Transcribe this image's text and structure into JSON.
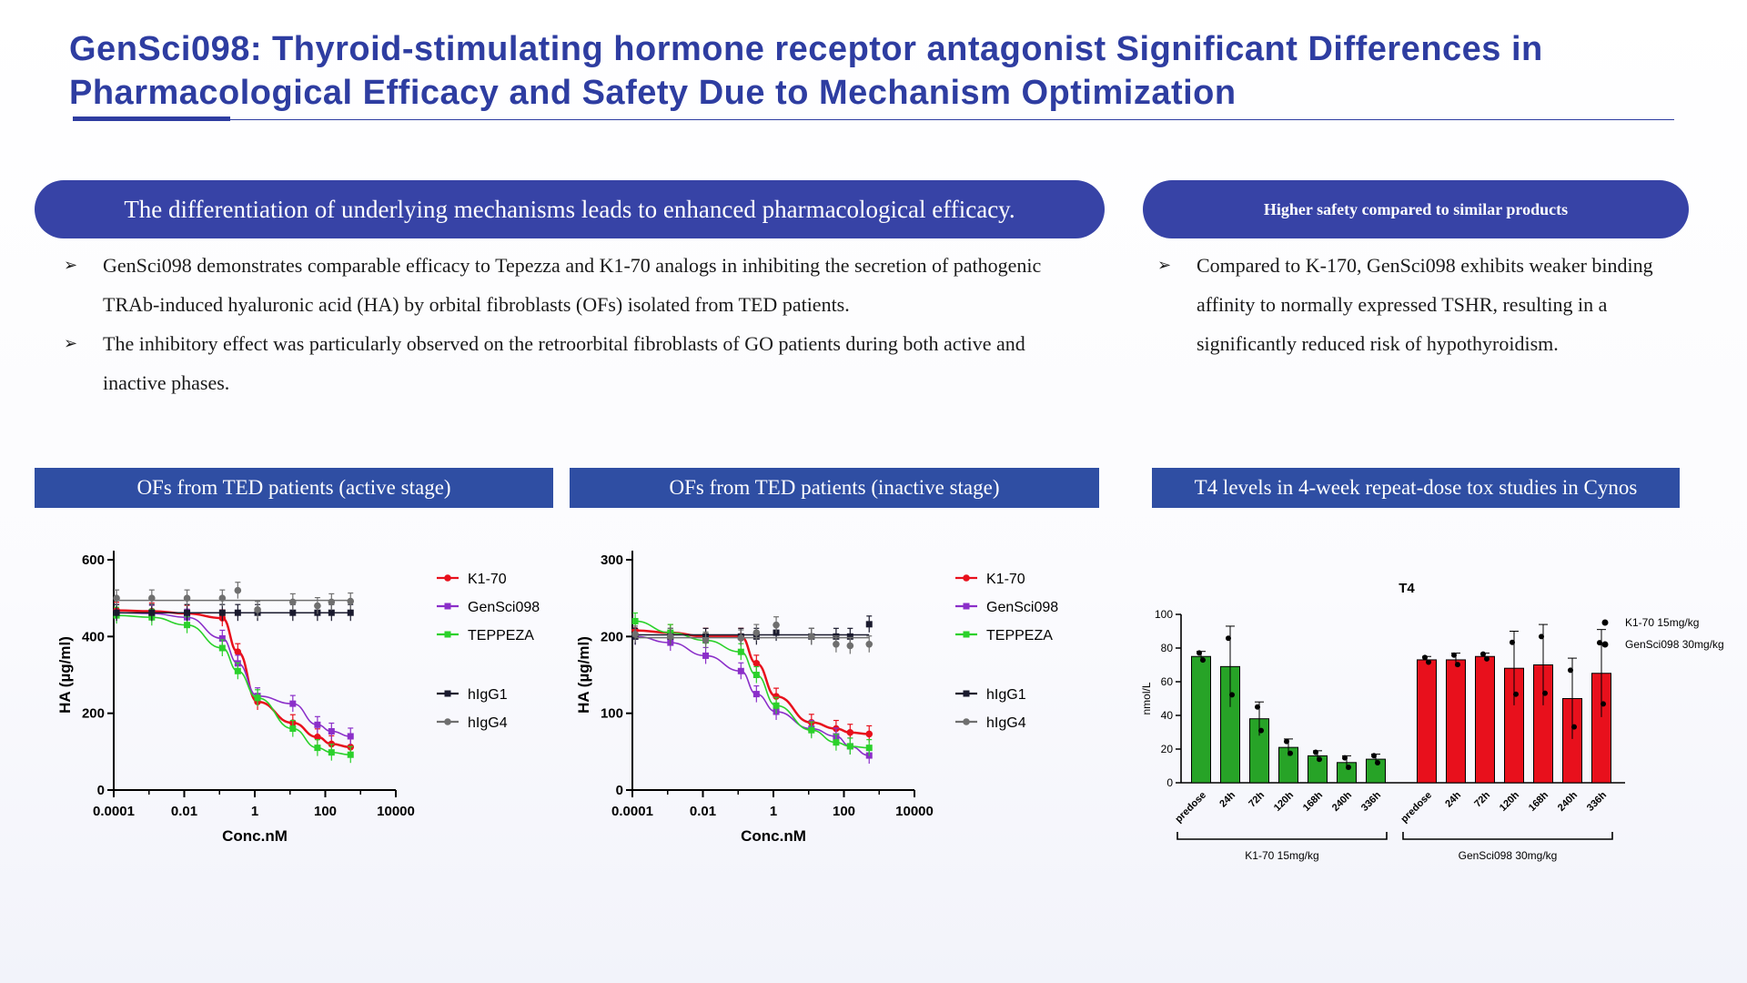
{
  "title": "GenSci098: Thyroid-stimulating hormone receptor antagonist  Significant Differences in Pharmacological Efficacy and Safety Due to Mechanism Optimization",
  "left_panel": {
    "header": "The differentiation of underlying mechanisms  leads to enhanced pharmacological  efficacy.",
    "bullets": [
      "GenSci098 demonstrates comparable efficacy to Tepezza and K1-70 analogs in inhibiting  the secretion of pathogenic TRAb-induced hyaluronic acid (HA) by orbital fibroblasts (OFs) isolated from TED patients.",
      "The inhibitory effect was particularly observed on the retroorbital fibroblasts of GO patients during both active and inactive phases."
    ]
  },
  "right_panel": {
    "header": "Higher safety compared  to similar  products",
    "bullets": [
      "Compared to K-170, GenSci098 exhibits weaker binding  affinity to normally expressed TSHR, resulting in a significantly  reduced risk of hypothyroidism."
    ]
  },
  "bullet_symbol": "➢",
  "chart_headers": [
    "OFs  from  TED  patients  (active stage)",
    "OFs  from  TED  patients  (inactive stage)",
    "T4 levels in 4-week repeat-dose tox studies in Cynos"
  ],
  "colors": {
    "title": "#2e3da1",
    "pill": "#3743a6",
    "band": "#2f4ea3",
    "K1-70": "#e8101c",
    "GenSci098": "#8b2fc9",
    "TEPPEZA": "#2bd12b",
    "hIgG1": "#1a1a2e",
    "hIgG4": "#6f6f6f",
    "t4_green": "#27a327",
    "t4_red": "#e8101c"
  },
  "chart_data": [
    {
      "type": "line",
      "name": "active",
      "xscale": "log",
      "xlabel": "Conc.nM",
      "ylabel": "HA (µg/ml)",
      "xlim": [
        0.0001,
        10000
      ],
      "ylim": [
        0,
        600
      ],
      "xticks": [
        "0.0001",
        "0.01",
        "1",
        "100",
        "10000"
      ],
      "yticks": [
        "0",
        "200",
        "400",
        "600"
      ],
      "x": [
        0.00012,
        0.0012,
        0.012,
        0.12,
        0.33,
        1.2,
        12,
        60,
        150,
        520
      ],
      "series": [
        {
          "name": "K1-70",
          "values": [
            468,
            466,
            460,
            448,
            360,
            230,
            175,
            138,
            120,
            112
          ],
          "fit": true
        },
        {
          "name": "GenSci098",
          "values": [
            462,
            460,
            450,
            395,
            330,
            245,
            225,
            170,
            153,
            140
          ],
          "fit": true
        },
        {
          "name": "TEPPEZA",
          "values": [
            455,
            450,
            430,
            370,
            310,
            240,
            160,
            110,
            98,
            92
          ],
          "fit": true
        },
        {
          "name": "hIgG1",
          "values": [
            462,
            462,
            462,
            462,
            462,
            462,
            462,
            462,
            462,
            462
          ],
          "fit": false
        },
        {
          "name": "hIgG4",
          "values": [
            500,
            500,
            500,
            500,
            520,
            470,
            490,
            480,
            490,
            492
          ],
          "fit": false
        }
      ]
    },
    {
      "type": "line",
      "name": "inactive",
      "xscale": "log",
      "xlabel": "Conc.nM",
      "ylabel": "HA (µg/ml)",
      "xlim": [
        0.0001,
        10000
      ],
      "ylim": [
        0,
        300
      ],
      "xticks": [
        "0.0001",
        "0.01",
        "1",
        "100",
        "10000"
      ],
      "yticks": [
        "0",
        "100",
        "200",
        "300"
      ],
      "x": [
        0.00012,
        0.0012,
        0.012,
        0.12,
        0.33,
        1.2,
        12,
        60,
        150,
        520
      ],
      "series": [
        {
          "name": "K1-70",
          "values": [
            208,
            205,
            200,
            200,
            165,
            122,
            88,
            80,
            75,
            73
          ],
          "fit": true
        },
        {
          "name": "GenSci098",
          "values": [
            200,
            192,
            175,
            155,
            125,
            102,
            80,
            70,
            57,
            45
          ],
          "fit": true
        },
        {
          "name": "TEPPEZA",
          "values": [
            220,
            205,
            195,
            180,
            150,
            110,
            78,
            62,
            57,
            55
          ],
          "fit": true
        },
        {
          "name": "hIgG1",
          "values": [
            200,
            200,
            200,
            200,
            200,
            205,
            200,
            200,
            200,
            216
          ],
          "fit": false
        },
        {
          "name": "hIgG4",
          "values": [
            203,
            200,
            195,
            198,
            205,
            215,
            200,
            190,
            188,
            190
          ],
          "fit": false
        }
      ]
    },
    {
      "type": "bar",
      "title": "T4",
      "ylabel": "nmol/L",
      "ylim": [
        0,
        100
      ],
      "yticks": [
        "0",
        "20",
        "40",
        "60",
        "80",
        "100"
      ],
      "categories": [
        "predose",
        "24h",
        "72h",
        "120h",
        "168h",
        "240h",
        "336h"
      ],
      "groups": [
        {
          "name": "K1-70 15mg/kg",
          "values": [
            75,
            69,
            38,
            21,
            16,
            12,
            14
          ],
          "errors": [
            3,
            24,
            10,
            5,
            3,
            4,
            3
          ]
        },
        {
          "name": "GenSci098 30mg/kg",
          "values": [
            73,
            73,
            75,
            68,
            70,
            50,
            65
          ],
          "errors": [
            2,
            4,
            2,
            22,
            24,
            24,
            26
          ]
        }
      ],
      "legend": [
        "K1-70 15mg/kg",
        "GenSci098 30mg/kg"
      ]
    }
  ]
}
